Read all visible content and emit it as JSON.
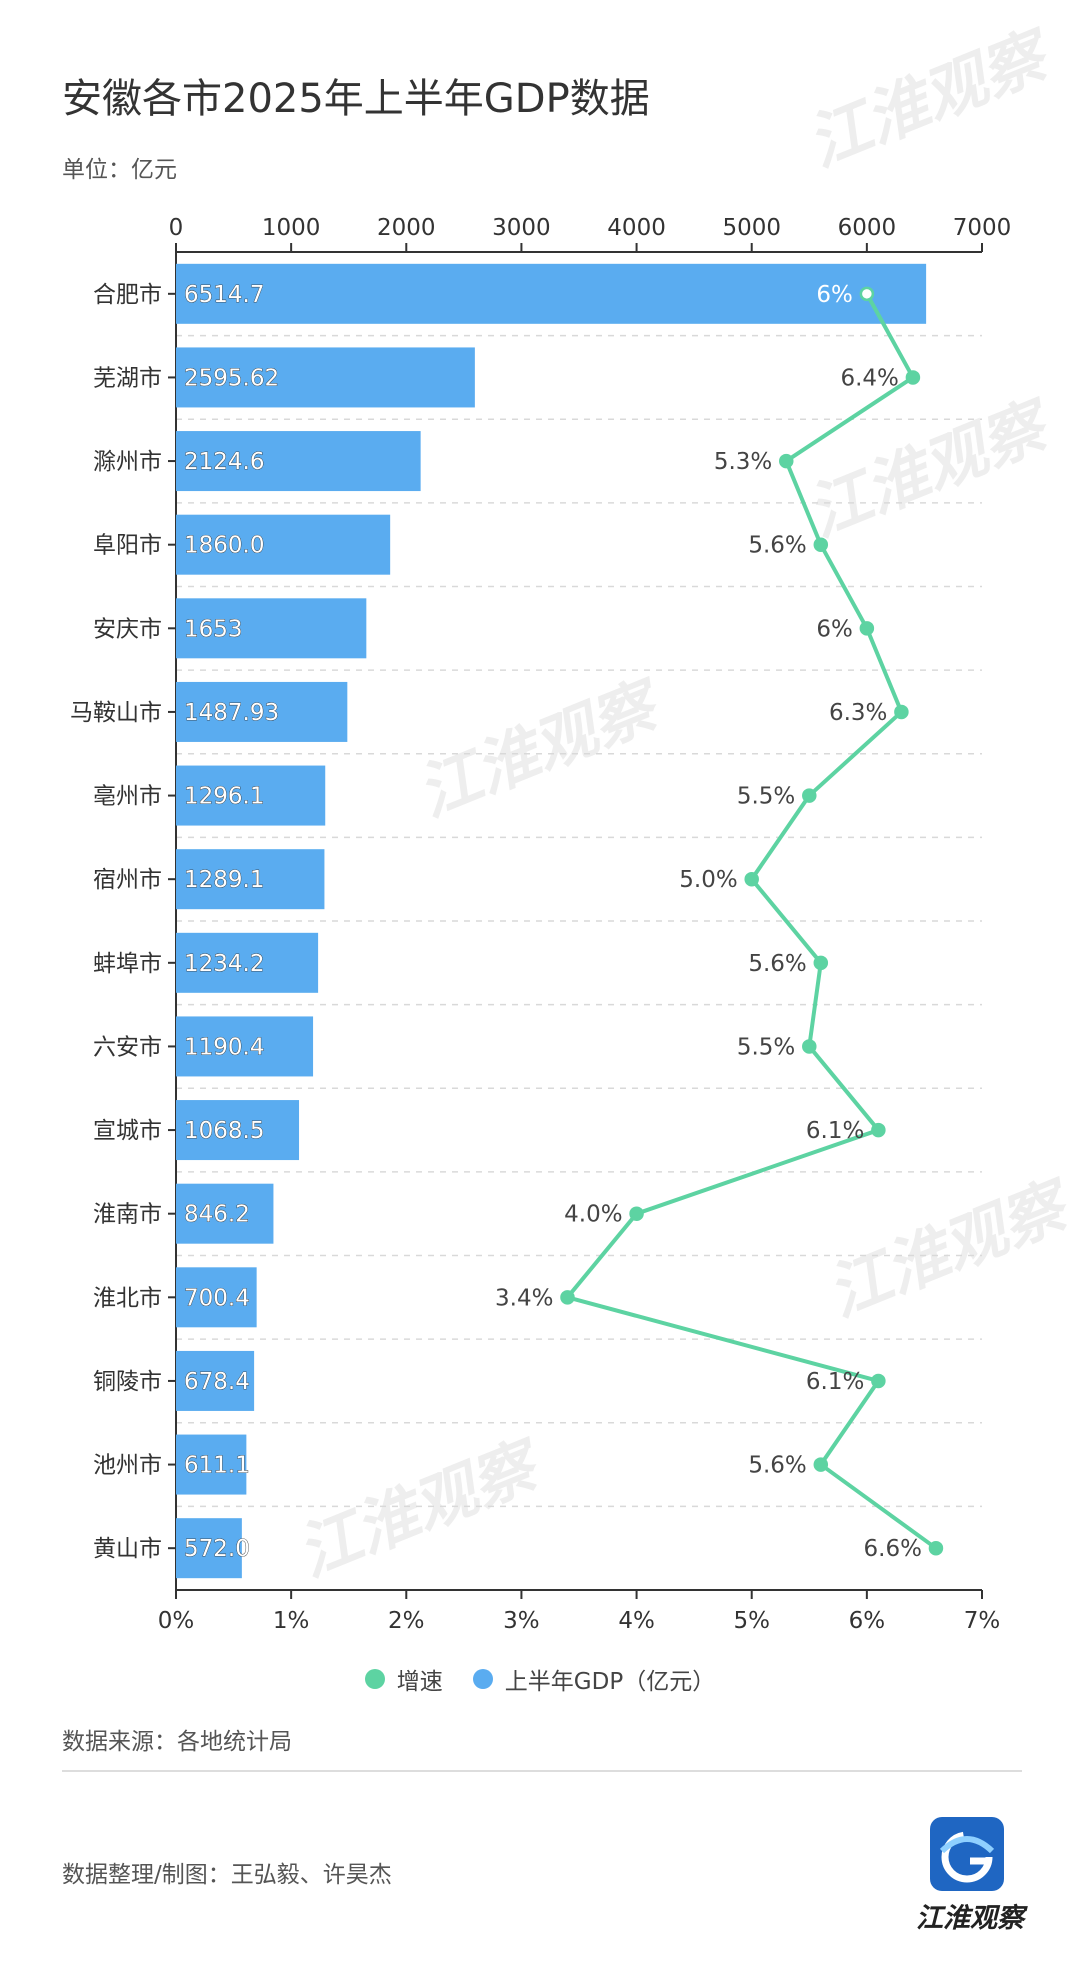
{
  "title": "安徽各市2025年上半年GDP数据",
  "unit_label": "单位：亿元",
  "source_label": "数据来源：各地统计局",
  "credit_label": "数据整理/制图：王弘毅、许昊杰",
  "watermark_text": "江淮观察",
  "logo_text": "江淮观察",
  "colors": {
    "bar": "#5aacf0",
    "line": "#5dd3a2",
    "grid": "#d9d9d9",
    "axis": "#333333",
    "logo": "#1f66c2"
  },
  "chart_data": {
    "type": "bar",
    "orientation": "horizontal",
    "categories": [
      "合肥市",
      "芜湖市",
      "滁州市",
      "阜阳市",
      "安庆市",
      "马鞍山市",
      "亳州市",
      "宿州市",
      "蚌埠市",
      "六安市",
      "宣城市",
      "淮南市",
      "淮北市",
      "铜陵市",
      "池州市",
      "黄山市"
    ],
    "series": [
      {
        "name": "上半年GDP（亿元）",
        "type": "bar",
        "values": [
          6514.7,
          2595.62,
          2124.6,
          1860.0,
          1653,
          1487.93,
          1296.1,
          1289.1,
          1234.2,
          1190.4,
          1068.5,
          846.2,
          700.4,
          678.4,
          611.1,
          572.0
        ],
        "labels": [
          "6514.7",
          "2595.62",
          "2124.6",
          "1860.0",
          "1653",
          "1487.93",
          "1296.1",
          "1289.1",
          "1234.2",
          "1190.4",
          "1068.5",
          "846.2",
          "700.4",
          "678.4",
          "611.1",
          "572.0"
        ]
      },
      {
        "name": "增速",
        "type": "line",
        "values": [
          6,
          6.4,
          5.3,
          5.6,
          6,
          6.3,
          5.5,
          5.0,
          5.6,
          5.5,
          6.1,
          4.0,
          3.4,
          6.1,
          5.6,
          6.6
        ],
        "labels": [
          "6%",
          "6.4%",
          "5.3%",
          "5.6%",
          "6%",
          "6.3%",
          "5.5%",
          "5.0%",
          "5.6%",
          "5.5%",
          "6.1%",
          "4.0%",
          "3.4%",
          "6.1%",
          "5.6%",
          "6.6%"
        ]
      }
    ],
    "top_axis": {
      "range": [
        0,
        7000
      ],
      "ticks": [
        "0",
        "1000",
        "2000",
        "3000",
        "4000",
        "5000",
        "6000",
        "7000"
      ]
    },
    "bottom_axis": {
      "range": [
        0,
        7
      ],
      "ticks": [
        "0%",
        "1%",
        "2%",
        "3%",
        "4%",
        "5%",
        "6%",
        "7%"
      ]
    },
    "grid": true,
    "legend_position": "bottom"
  }
}
